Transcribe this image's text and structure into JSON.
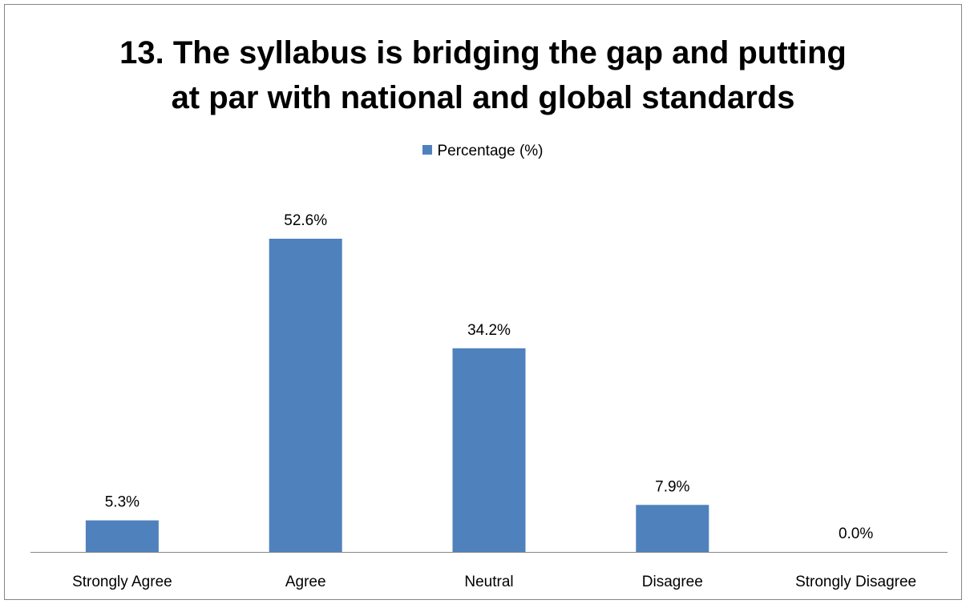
{
  "chart_data": {
    "type": "bar",
    "title_lines": [
      "13. The syllabus is bridging the gap and putting",
      "at par with national and global standards"
    ],
    "legend": {
      "position": "top",
      "entries": [
        "Percentage (%)"
      ]
    },
    "categories": [
      "Strongly Agree",
      "Agree",
      "Neutral",
      "Disagree",
      "Strongly Disagree"
    ],
    "series": [
      {
        "name": "Percentage (%)",
        "values": [
          5.3,
          52.6,
          34.2,
          7.9,
          0.0
        ],
        "data_labels": [
          "5.3%",
          "52.6%",
          "34.2%",
          "7.9%",
          "0.0%"
        ],
        "color": "#4F81BD"
      }
    ],
    "xlabel": "",
    "ylabel": "",
    "ylim": [
      0,
      52.6
    ],
    "grid": false,
    "axis_color": "#868686"
  }
}
